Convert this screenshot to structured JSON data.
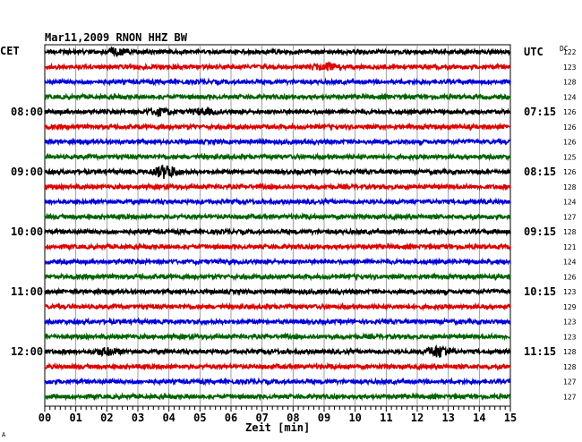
{
  "chart_data": {
    "type": "line",
    "title": "Mar11,2009   RNON HHZ BW",
    "xlabel": "Zeit [min]",
    "xlim": [
      0,
      15
    ],
    "x_ticks": [
      "00",
      "01",
      "02",
      "03",
      "04",
      "05",
      "06",
      "07",
      "08",
      "09",
      "10",
      "11",
      "12",
      "13",
      "14",
      "15"
    ],
    "left_timezone": "CET",
    "right_timezone": "UTC",
    "dc_header": "DC",
    "trace_colors": [
      "#000000",
      "#e00000",
      "#0000e0",
      "#006400"
    ],
    "hour_labels_left": [
      {
        "trace": 4,
        "text": "08:00"
      },
      {
        "trace": 8,
        "text": "09:00"
      },
      {
        "trace": 12,
        "text": "10:00"
      },
      {
        "trace": 16,
        "text": "11:00"
      },
      {
        "trace": 20,
        "text": "12:00"
      }
    ],
    "hour_labels_right": [
      {
        "trace": 0,
        "text": "UTC"
      },
      {
        "trace": 4,
        "text": "07:15"
      },
      {
        "trace": 8,
        "text": "08:15"
      },
      {
        "trace": 12,
        "text": "09:15"
      },
      {
        "trace": 16,
        "text": "10:15"
      },
      {
        "trace": 20,
        "text": "11:15"
      }
    ],
    "dc_values": [
      "122",
      "123",
      "128",
      "124",
      "126",
      "126",
      "126",
      "125",
      "126",
      "128",
      "124",
      "127",
      "128",
      "121",
      "124",
      "126",
      "123",
      "129",
      "123",
      "123",
      "128",
      "128",
      "127",
      "127"
    ],
    "events": [
      {
        "trace": 0,
        "minute": 2.3,
        "amplitude": 1.6
      },
      {
        "trace": 4,
        "minute": 3.7,
        "amplitude": 1.4
      },
      {
        "trace": 4,
        "minute": 5.1,
        "amplitude": 1.2
      },
      {
        "trace": 8,
        "minute": 3.9,
        "amplitude": 3.0
      },
      {
        "trace": 20,
        "minute": 2.0,
        "amplitude": 1.5
      },
      {
        "trace": 20,
        "minute": 12.7,
        "amplitude": 2.6
      },
      {
        "trace": 1,
        "minute": 9.1,
        "amplitude": 1.4
      }
    ],
    "footnote": "A"
  }
}
